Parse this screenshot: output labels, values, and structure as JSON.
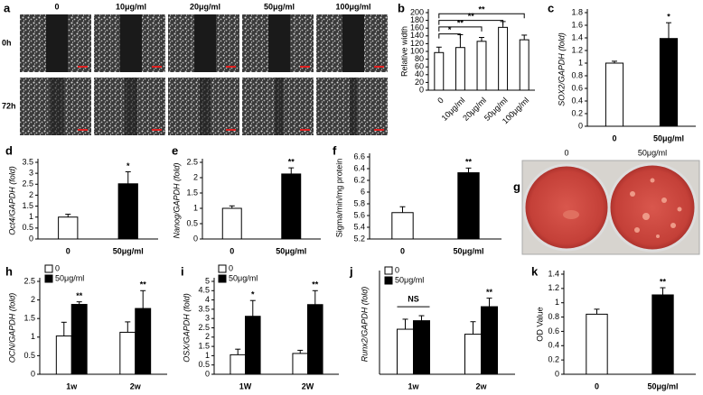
{
  "images": {
    "panel": "a",
    "columns": [
      "0",
      "10μg/ml",
      "20μg/ml",
      "50μg/ml",
      "100μg/ml"
    ],
    "rows": [
      "0h",
      "72h"
    ]
  },
  "photo": {
    "panel": "g",
    "labels": [
      "0",
      "50μg/ml"
    ]
  },
  "chart_data": [
    {
      "panel": "b",
      "type": "bar",
      "ylabel": "Relative width",
      "categories": [
        "0",
        "10μg/ml",
        "20μg/ml",
        "50μg/ml",
        "100μg/ml"
      ],
      "series": [
        {
          "color": "#ffffff",
          "values": [
            97,
            110,
            126,
            162,
            130
          ],
          "errors": [
            14,
            33,
            10,
            15,
            12
          ]
        }
      ],
      "ylim": [
        0,
        200
      ],
      "yticks": [
        0,
        20,
        40,
        60,
        80,
        100,
        120,
        140,
        160,
        180,
        200
      ],
      "annotations": [
        "*",
        "**",
        "**",
        "**"
      ]
    },
    {
      "panel": "c",
      "type": "bar",
      "ylabel": "SOX2/GAPDH (fold)",
      "categories": [
        "0",
        "50μg/ml"
      ],
      "series": [
        {
          "colors": [
            "#ffffff",
            "#000000"
          ],
          "values": [
            1,
            1.39
          ],
          "errors": [
            0.03,
            0.25
          ]
        }
      ],
      "ylim": [
        0,
        1.8
      ],
      "yticks": [
        0,
        0.2,
        0.4,
        0.6,
        0.8,
        1,
        1.2,
        1.4,
        1.6,
        1.8
      ],
      "annotations": [
        "*"
      ]
    },
    {
      "panel": "d",
      "type": "bar",
      "ylabel": "Oct4/GAPDH (fold)",
      "categories": [
        "0",
        "50μg/ml"
      ],
      "series": [
        {
          "colors": [
            "#ffffff",
            "#000000"
          ],
          "values": [
            1,
            2.52
          ],
          "errors": [
            0.13,
            0.55
          ]
        }
      ],
      "ylim": [
        0,
        3.5
      ],
      "yticks": [
        0,
        0.5,
        1,
        1.5,
        2,
        2.5,
        3,
        3.5
      ],
      "annotations": [
        "*"
      ]
    },
    {
      "panel": "e",
      "type": "bar",
      "ylabel": "Nanog/GAPDH (fold)",
      "categories": [
        "0",
        "50μg/ml"
      ],
      "series": [
        {
          "colors": [
            "#ffffff",
            "#000000"
          ],
          "values": [
            1,
            2.12
          ],
          "errors": [
            0.08,
            0.2
          ]
        }
      ],
      "ylim": [
        0,
        2.5
      ],
      "yticks": [
        0,
        0.5,
        1,
        1.5,
        2,
        2.5
      ],
      "annotations": [
        "**"
      ]
    },
    {
      "panel": "f",
      "type": "bar",
      "ylabel": "Sigma/min/mg protein",
      "categories": [
        "0",
        "50μg/ml"
      ],
      "series": [
        {
          "colors": [
            "#ffffff",
            "#000000"
          ],
          "values": [
            5.65,
            6.33
          ],
          "errors": [
            0.1,
            0.08
          ]
        }
      ],
      "ylim": [
        5.2,
        6.6
      ],
      "yticks": [
        5.2,
        5.4,
        5.6,
        5.8,
        6,
        6.2,
        6.4,
        6.6
      ],
      "annotations": [
        "**"
      ]
    },
    {
      "panel": "h",
      "type": "bar",
      "ylabel": "OCN/GAPDH (fold)",
      "categories": [
        "1w",
        "2w"
      ],
      "series": [
        {
          "name": "0",
          "color": "#ffffff",
          "values": [
            1.03,
            1.13
          ],
          "errors": [
            0.37,
            0.28
          ]
        },
        {
          "name": "50μg/ml",
          "color": "#000000",
          "values": [
            1.88,
            1.77
          ],
          "errors": [
            0.07,
            0.48
          ]
        }
      ],
      "ylim": [
        0,
        2.5
      ],
      "yticks": [
        0,
        0.5,
        1,
        1.5,
        2,
        2.5
      ],
      "annotations": [
        "**",
        "**"
      ]
    },
    {
      "panel": "i",
      "type": "bar",
      "ylabel": "OSX/GAPDH (fold)",
      "categories": [
        "1W",
        "2W"
      ],
      "series": [
        {
          "name": "0",
          "color": "#ffffff",
          "values": [
            1.05,
            1.12
          ],
          "errors": [
            0.3,
            0.17
          ]
        },
        {
          "name": "50μg/ml",
          "color": "#000000",
          "values": [
            3.12,
            3.75
          ],
          "errors": [
            0.85,
            0.75
          ]
        }
      ],
      "ylim": [
        0,
        5
      ],
      "yticks": [
        0,
        0.5,
        1,
        1.5,
        2,
        2.5,
        3,
        3.5,
        4,
        4.5,
        5
      ],
      "annotations": [
        "*",
        "**"
      ]
    },
    {
      "panel": "j",
      "type": "bar",
      "ylabel": "Runx2/GAPDH (fold)",
      "categories": [
        "1w",
        "2w"
      ],
      "series": [
        {
          "name": "0",
          "color": "#ffffff",
          "values": [
            0.9,
            0.8
          ],
          "errors": [
            0.2,
            0.25
          ]
        },
        {
          "name": "50μg/ml",
          "color": "#000000",
          "values": [
            1.07,
            1.35
          ],
          "errors": [
            0.1,
            0.17
          ]
        }
      ],
      "ylim": [
        0,
        2
      ],
      "annotations": [
        "NS",
        "**"
      ]
    },
    {
      "panel": "k",
      "type": "bar",
      "ylabel": "OD Value",
      "categories": [
        "0",
        "50μg/ml"
      ],
      "series": [
        {
          "colors": [
            "#ffffff",
            "#000000"
          ],
          "values": [
            0.84,
            1.11
          ],
          "errors": [
            0.07,
            0.1
          ]
        }
      ],
      "ylim": [
        0,
        1.4
      ],
      "yticks": [
        0,
        0.2,
        0.4,
        0.6,
        0.8,
        1,
        1.2,
        1.4
      ],
      "annotations": [
        "**"
      ]
    }
  ]
}
